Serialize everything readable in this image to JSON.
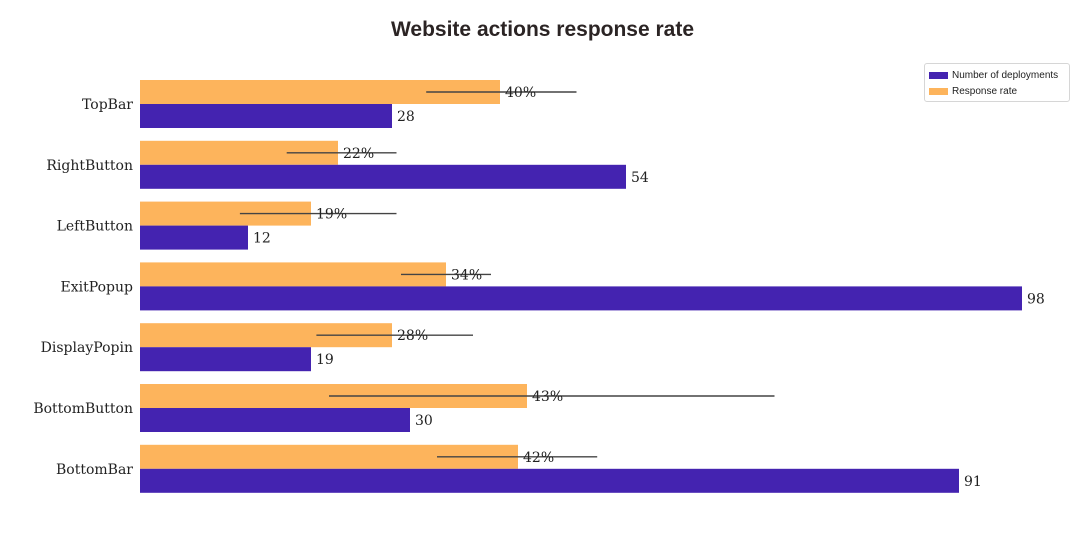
{
  "colors": {
    "deployments": "#4423b0",
    "response": "#fdb45c"
  },
  "chart_data": {
    "type": "bar",
    "orientation": "horizontal",
    "title": "Website actions response rate",
    "categories": [
      "TopBar",
      "RightButton",
      "LeftButton",
      "ExitPopup",
      "DisplayPopin",
      "BottomButton",
      "BottomBar"
    ],
    "series": [
      {
        "name": "Response rate",
        "values": [
          40,
          22,
          19,
          34,
          28,
          43,
          42
        ],
        "labels": [
          "40%",
          "22%",
          "19%",
          "34%",
          "28%",
          "43%",
          "42%"
        ],
        "error_low": [
          31.8,
          16.3,
          11.1,
          29,
          19.6,
          21,
          33
        ],
        "error_high": [
          48.5,
          28.5,
          28.5,
          39,
          37,
          70.5,
          50.8
        ]
      },
      {
        "name": "Number of deployments",
        "values": [
          28,
          54,
          12,
          98,
          19,
          30,
          91
        ],
        "labels": [
          "28",
          "54",
          "12",
          "98",
          "19",
          "30",
          "91"
        ]
      }
    ],
    "xlim": [
      0,
      100
    ],
    "grid": false,
    "legend_position": "top-right"
  }
}
